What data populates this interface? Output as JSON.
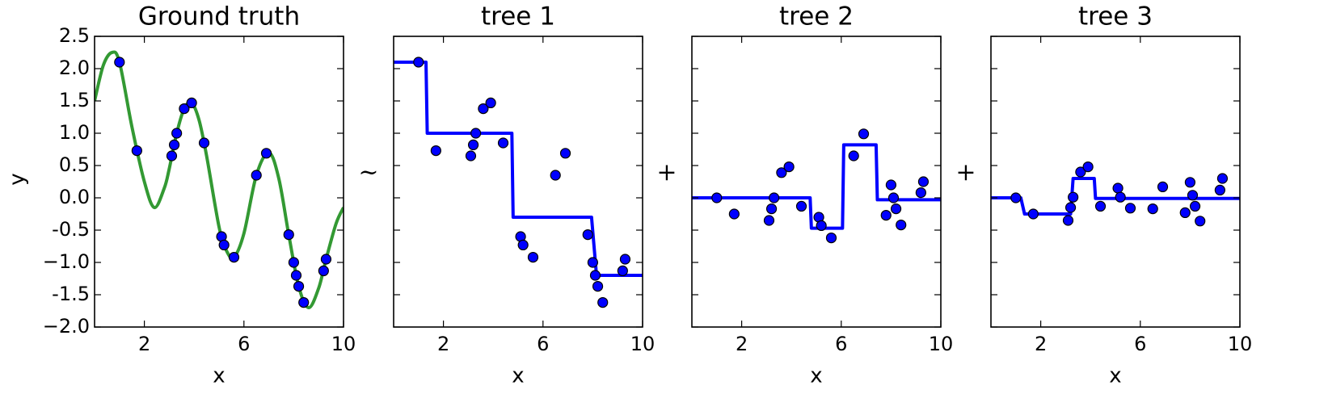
{
  "operators": [
    "~",
    "+",
    "+"
  ],
  "chart_data": [
    {
      "type": "line",
      "title": "Ground truth",
      "xlabel": "x",
      "ylabel": "y",
      "xlim": [
        0,
        10
      ],
      "ylim": [
        -2,
        2.5
      ],
      "xticks": [
        2,
        6,
        10
      ],
      "yticks": [
        {
          "value": -2,
          "label": "−2.0"
        },
        -1.5,
        {
          "value": -1,
          "label": "−1.0"
        },
        -0.5,
        {
          "value": 0,
          "label": "0.0"
        },
        0.5,
        {
          "value": 1,
          "label": "1.0"
        },
        1.5,
        {
          "value": 2,
          "label": "2.0"
        },
        2.5
      ],
      "ytick_labels": true,
      "series": [
        {
          "kind": "line",
          "color": "#339933",
          "x": [
            0,
            0.35,
            0.7,
            1.0,
            1.5,
            2.0,
            2.4,
            2.8,
            3.0,
            3.3,
            3.6,
            3.9,
            4.2,
            4.5,
            5.0,
            5.3,
            5.6,
            6.0,
            6.5,
            7.0,
            7.4,
            7.8,
            8.2,
            8.6,
            9.0,
            9.3,
            9.7,
            10
          ],
          "values": [
            1.5,
            2.05,
            2.25,
            2.1,
            1.1,
            0.25,
            -0.15,
            0.15,
            0.45,
            1.0,
            1.38,
            1.47,
            1.2,
            0.65,
            -0.45,
            -0.82,
            -0.92,
            -0.55,
            0.35,
            0.7,
            0.3,
            -0.57,
            -1.37,
            -1.7,
            -1.4,
            -0.95,
            -0.4,
            -0.15
          ]
        },
        {
          "kind": "scatter",
          "color": "#0000ff",
          "x": [
            1.0,
            1.7,
            3.1,
            3.2,
            3.3,
            3.6,
            3.9,
            4.4,
            5.1,
            5.2,
            5.6,
            6.5,
            6.9,
            7.8,
            8.0,
            8.1,
            8.2,
            8.4,
            9.2,
            9.3
          ],
          "values": [
            2.1,
            0.73,
            0.65,
            0.82,
            1.0,
            1.38,
            1.47,
            0.85,
            -0.6,
            -0.73,
            -0.92,
            0.35,
            0.69,
            -0.57,
            -1.0,
            -1.2,
            -1.37,
            -1.62,
            -1.13,
            -0.95
          ]
        }
      ]
    },
    {
      "type": "line",
      "title": "tree 1",
      "xlabel": "x",
      "xlim": [
        0,
        10
      ],
      "ylim": [
        -2,
        2.5
      ],
      "xticks": [
        2,
        6,
        10
      ],
      "yticks": [
        -2,
        -1.5,
        -1,
        -0.5,
        0,
        0.5,
        1,
        1.5,
        2,
        2.5
      ],
      "ytick_labels": false,
      "series": [
        {
          "kind": "line",
          "color": "#0000ff",
          "x": [
            0,
            1.3,
            1.35,
            4.75,
            4.8,
            7.95,
            8.15,
            10
          ],
          "values": [
            2.1,
            2.1,
            1.0,
            1.0,
            -0.3,
            -0.3,
            -1.2,
            -1.2
          ]
        },
        {
          "kind": "scatter",
          "color": "#0000ff",
          "x": [
            1.0,
            1.7,
            3.1,
            3.2,
            3.3,
            3.6,
            3.9,
            4.4,
            5.1,
            5.2,
            5.6,
            6.5,
            6.9,
            7.8,
            8.0,
            8.1,
            8.2,
            8.4,
            9.2,
            9.3
          ],
          "values": [
            2.1,
            0.73,
            0.65,
            0.82,
            1.0,
            1.38,
            1.47,
            0.85,
            -0.6,
            -0.73,
            -0.92,
            0.35,
            0.69,
            -0.57,
            -1.0,
            -1.2,
            -1.37,
            -1.62,
            -1.13,
            -0.95
          ]
        }
      ]
    },
    {
      "type": "line",
      "title": "tree 2",
      "xlabel": "x",
      "xlim": [
        0,
        10
      ],
      "ylim": [
        -2,
        2.5
      ],
      "xticks": [
        2,
        6,
        10
      ],
      "yticks": [
        -2,
        -1.5,
        -1,
        -0.5,
        0,
        0.5,
        1,
        1.5,
        2,
        2.5
      ],
      "ytick_labels": false,
      "series": [
        {
          "kind": "line",
          "color": "#0000ff",
          "x": [
            0,
            4.75,
            4.8,
            6.05,
            6.1,
            7.4,
            7.45,
            10
          ],
          "values": [
            0,
            0,
            -0.47,
            -0.47,
            0.82,
            0.82,
            -0.03,
            -0.03
          ]
        },
        {
          "kind": "scatter",
          "color": "#0000ff",
          "x": [
            1.0,
            1.7,
            3.1,
            3.2,
            3.3,
            3.6,
            3.9,
            4.4,
            5.1,
            5.2,
            5.6,
            6.5,
            6.9,
            7.8,
            8.0,
            8.1,
            8.2,
            8.4,
            9.2,
            9.3
          ],
          "values": [
            0.0,
            -0.25,
            -0.35,
            -0.17,
            0.0,
            0.39,
            0.48,
            -0.13,
            -0.3,
            -0.43,
            -0.62,
            0.65,
            0.99,
            -0.27,
            0.2,
            0.0,
            -0.17,
            -0.42,
            0.08,
            0.25
          ]
        }
      ]
    },
    {
      "type": "line",
      "title": "tree 3",
      "xlabel": "x",
      "xlim": [
        0,
        10
      ],
      "ylim": [
        -2,
        2.5
      ],
      "xticks": [
        2,
        6,
        10
      ],
      "yticks": [
        -2,
        -1.5,
        -1,
        -0.5,
        0,
        0.5,
        1,
        1.5,
        2,
        2.5
      ],
      "ytick_labels": false,
      "series": [
        {
          "kind": "line",
          "color": "#0000ff",
          "x": [
            0,
            1.2,
            1.35,
            3.2,
            3.3,
            4.15,
            4.2,
            10
          ],
          "values": [
            0,
            0,
            -0.25,
            -0.25,
            0.3,
            0.3,
            -0.01,
            -0.01
          ]
        },
        {
          "kind": "scatter",
          "color": "#0000ff",
          "x": [
            1.0,
            1.7,
            3.1,
            3.2,
            3.3,
            3.6,
            3.9,
            4.4,
            5.1,
            5.2,
            5.6,
            6.5,
            6.9,
            7.8,
            8.0,
            8.1,
            8.2,
            8.4,
            9.2,
            9.3
          ],
          "values": [
            0.0,
            -0.25,
            -0.35,
            -0.15,
            0.01,
            0.4,
            0.48,
            -0.13,
            0.15,
            0.01,
            -0.16,
            -0.17,
            0.17,
            -0.23,
            0.24,
            0.04,
            -0.13,
            -0.36,
            0.12,
            0.3
          ]
        }
      ]
    }
  ]
}
